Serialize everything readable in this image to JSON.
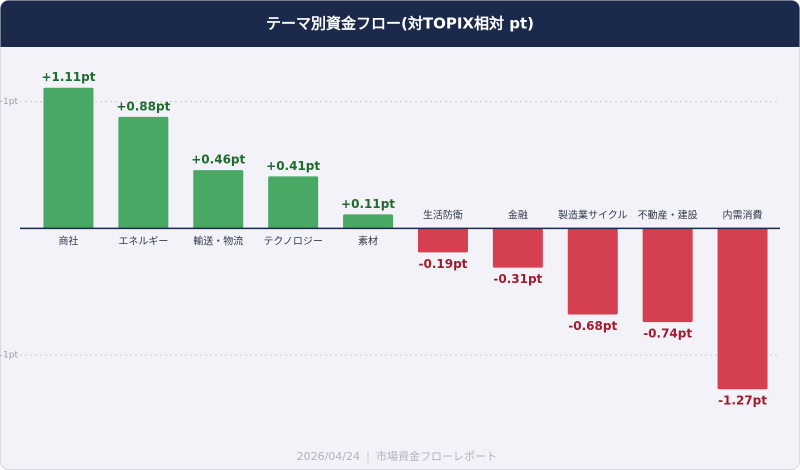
{
  "chart_data": {
    "type": "bar",
    "title": "テーマ別資金フロー(対TOPIX相対 pt)",
    "categories": [
      "商社",
      "エネルギー",
      "輸送・物流",
      "テクノロジー",
      "素材",
      "生活防衛",
      "金融",
      "製造業サイクル",
      "不動産・建設",
      "内需消費"
    ],
    "values": [
      1.11,
      0.88,
      0.46,
      0.41,
      0.11,
      -0.19,
      -0.31,
      -0.68,
      -0.74,
      -1.27
    ],
    "value_labels": [
      "+1.11pt",
      "+0.88pt",
      "+0.46pt",
      "+0.41pt",
      "+0.11pt",
      "-0.19pt",
      "-0.31pt",
      "-0.68pt",
      "-0.74pt",
      "-1.27pt"
    ],
    "positive_color": "#4aa865",
    "negative_color": "#d4404f",
    "ylim": [
      -1.6,
      1.4
    ],
    "yticks": [
      {
        "value": 1,
        "label": "+1pt"
      },
      {
        "value": -1,
        "label": "-1pt"
      }
    ],
    "grid": true
  },
  "footer": {
    "date": "2026/04/24",
    "source": "市場資金フローレポート"
  }
}
